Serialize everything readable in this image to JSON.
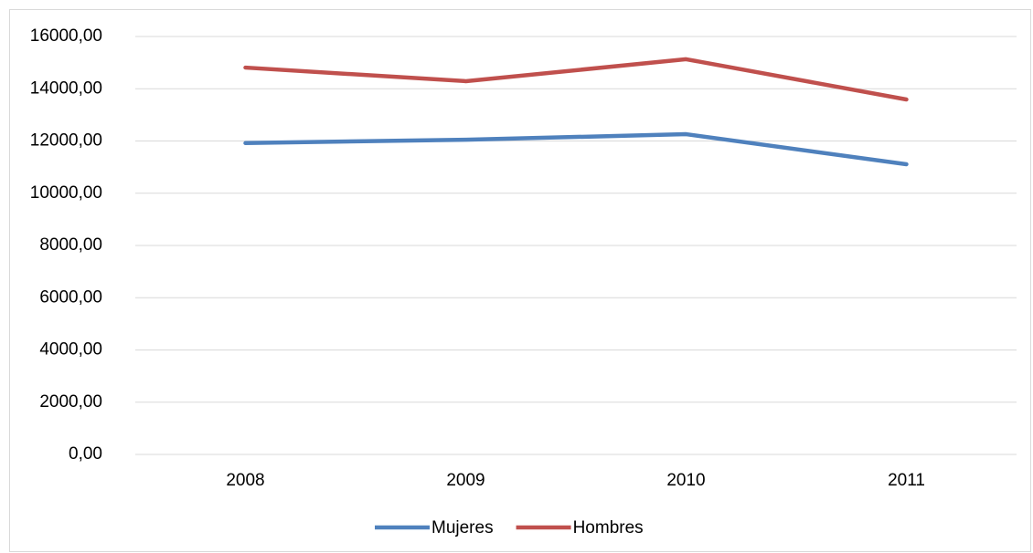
{
  "chart_data": {
    "type": "line",
    "categories": [
      "2008",
      "2009",
      "2010",
      "2011"
    ],
    "series": [
      {
        "name": "Mujeres",
        "color": "#4f81bd",
        "values": [
          11920,
          12050,
          12260,
          11110
        ]
      },
      {
        "name": "Hombres",
        "color": "#c0504d",
        "values": [
          14810,
          14290,
          15130,
          13590
        ]
      }
    ],
    "ylim": [
      0,
      16000
    ],
    "yticks": [
      {
        "value": 0,
        "label": "0,00"
      },
      {
        "value": 2000,
        "label": "2000,00"
      },
      {
        "value": 4000,
        "label": "4000,00"
      },
      {
        "value": 6000,
        "label": "6000,00"
      },
      {
        "value": 8000,
        "label": "8000,00"
      },
      {
        "value": 10000,
        "label": "10000,00"
      },
      {
        "value": 12000,
        "label": "12000,00"
      },
      {
        "value": 14000,
        "label": "14000,00"
      },
      {
        "value": 16000,
        "label": "16000,00"
      }
    ],
    "grid": true,
    "legend": "bottom"
  }
}
